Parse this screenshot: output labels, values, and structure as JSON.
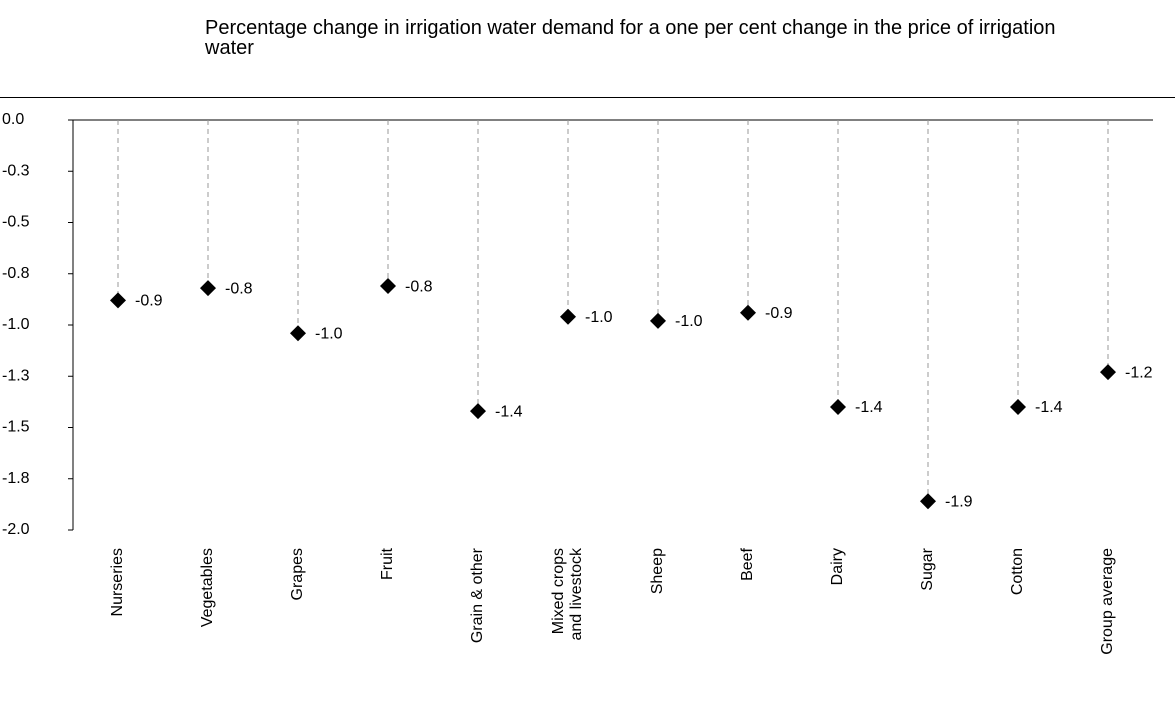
{
  "chart_data": {
    "type": "dot",
    "title": "Percentage change in irrigation water demand for a one per cent change in the price of irrigation water",
    "categories": [
      "Nurseries",
      "Vegetables",
      "Grapes",
      "Fruit",
      "Grain & other",
      "Mixed crops and livestock",
      "Sheep",
      "Beef",
      "Dairy",
      "Sugar",
      "Cotton",
      "Group average"
    ],
    "values": [
      -0.88,
      -0.82,
      -1.04,
      -0.81,
      -1.42,
      -0.96,
      -0.98,
      -0.94,
      -1.4,
      -1.86,
      -1.4,
      -1.23
    ],
    "value_labels": [
      "-0.9",
      "-0.8",
      "-1.0",
      "-0.8",
      "-1.4",
      "-1.0",
      "-1.0",
      "-0.9",
      "-1.4",
      "-1.9",
      "-1.4",
      "-1.2"
    ],
    "color": "#000000",
    "ylim": [
      -2,
      0
    ],
    "yticks": [
      {
        "value": 0,
        "label": "0.0"
      },
      {
        "value": -0.25,
        "label": "-0.3"
      },
      {
        "value": -0.5,
        "label": "-0.5"
      },
      {
        "value": -0.75,
        "label": "-0.8"
      },
      {
        "value": -1,
        "label": "-1.0"
      },
      {
        "value": -1.25,
        "label": "-1.3"
      },
      {
        "value": -1.5,
        "label": "-1.5"
      },
      {
        "value": -1.75,
        "label": "-1.8"
      },
      {
        "value": -2,
        "label": "-2.0"
      }
    ]
  }
}
